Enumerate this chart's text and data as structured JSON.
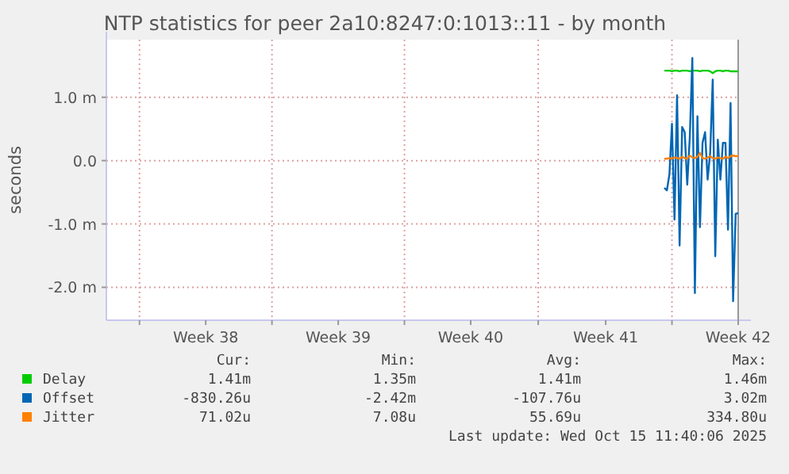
{
  "chart_data": {
    "type": "line",
    "title": "NTP statistics for peer 2a10:8247:0:1013::11 - by month",
    "ylabel": "seconds",
    "categories": [
      null,
      null,
      null,
      null,
      null,
      null,
      null,
      null,
      null,
      null,
      null,
      null,
      null,
      null,
      null,
      null,
      null,
      null,
      null,
      null,
      null,
      null,
      null,
      null,
      null,
      null,
      null,
      null,
      null,
      null,
      null,
      null,
      null,
      null,
      null,
      null,
      null,
      null,
      null,
      "Week 38",
      null,
      null,
      null,
      null,
      null,
      null,
      null,
      null,
      null,
      null,
      null,
      null,
      null,
      null,
      null,
      null,
      null,
      null,
      null,
      null,
      null,
      null,
      null,
      null,
      null,
      null,
      null,
      null,
      null,
      null,
      null,
      null,
      null,
      null,
      null,
      null,
      null,
      null,
      null,
      null,
      null,
      null,
      null,
      null,
      null,
      null,
      null,
      null,
      null,
      null,
      null,
      "Week 39",
      null,
      null,
      null,
      null,
      null,
      null,
      null,
      null,
      null,
      null,
      null,
      null,
      null,
      null,
      null,
      null,
      null,
      null,
      null,
      null,
      null,
      null,
      null,
      null,
      null,
      null,
      null,
      null,
      null,
      null,
      null,
      null,
      null,
      null,
      null,
      null,
      null,
      null,
      null,
      null,
      null,
      null,
      null,
      null,
      null,
      null,
      null,
      null,
      null,
      null,
      null,
      "Week 40",
      null,
      null,
      null,
      null,
      null,
      null,
      null,
      null,
      null,
      null,
      null,
      null,
      null,
      null,
      null,
      null,
      null,
      null,
      null,
      null,
      null,
      null,
      null,
      null,
      null,
      null,
      null,
      null,
      null,
      null,
      null,
      null,
      null,
      null,
      null,
      null,
      null,
      null,
      null,
      null,
      null,
      null,
      null,
      null,
      null,
      null,
      null,
      null,
      null,
      null,
      null,
      null,
      "Week 41",
      null,
      null,
      null,
      null,
      null,
      null,
      null,
      null,
      null,
      null,
      null,
      null,
      null,
      null,
      null,
      null,
      null,
      null,
      null,
      null,
      null,
      null,
      null,
      null,
      null,
      null,
      null,
      null,
      null,
      null,
      null,
      null,
      null,
      null,
      null,
      null,
      null,
      null,
      null,
      null,
      null,
      null,
      null,
      null,
      null,
      null,
      null,
      null,
      null,
      null,
      null,
      "Week 42"
    ],
    "ylim": [
      -2.52,
      1.91
    ],
    "yticks": [
      {
        "value": -2,
        "label": "-2.0 m"
      },
      {
        "value": -1,
        "label": "-1.0 m"
      },
      {
        "value": 0,
        "label": "0.0"
      },
      {
        "value": 1,
        "label": "1.0 m"
      }
    ],
    "grid": true,
    "legend": "bottom left",
    "line_style": "solid",
    "marker": "none",
    "series": [
      {
        "name": "Delay",
        "color": "#00cc00",
        "values": [
          null,
          null,
          null,
          null,
          null,
          null,
          null,
          null,
          null,
          null,
          null,
          null,
          null,
          null,
          null,
          null,
          null,
          null,
          null,
          null,
          null,
          null,
          null,
          null,
          null,
          null,
          null,
          null,
          null,
          null,
          null,
          null,
          null,
          null,
          null,
          null,
          null,
          null,
          null,
          null,
          null,
          null,
          null,
          null,
          null,
          null,
          null,
          null,
          null,
          null,
          null,
          null,
          null,
          null,
          null,
          null,
          null,
          null,
          null,
          null,
          null,
          null,
          null,
          null,
          null,
          null,
          null,
          null,
          null,
          null,
          null,
          null,
          null,
          null,
          null,
          null,
          null,
          null,
          null,
          null,
          null,
          null,
          null,
          null,
          null,
          null,
          null,
          null,
          null,
          null,
          null,
          null,
          null,
          null,
          null,
          null,
          null,
          null,
          null,
          null,
          null,
          null,
          null,
          null,
          null,
          null,
          null,
          null,
          null,
          null,
          null,
          null,
          null,
          null,
          null,
          null,
          null,
          null,
          null,
          null,
          null,
          null,
          null,
          null,
          null,
          null,
          null,
          null,
          null,
          null,
          null,
          null,
          null,
          null,
          null,
          null,
          null,
          null,
          null,
          null,
          null,
          null,
          null,
          null,
          null,
          null,
          null,
          null,
          null,
          null,
          null,
          null,
          null,
          null,
          null,
          null,
          null,
          null,
          null,
          null,
          null,
          null,
          null,
          null,
          null,
          null,
          null,
          null,
          null,
          null,
          null,
          null,
          null,
          null,
          null,
          null,
          null,
          null,
          null,
          null,
          null,
          null,
          null,
          null,
          null,
          null,
          null,
          null,
          null,
          null,
          null,
          null,
          null,
          null,
          null,
          null,
          null,
          null,
          null,
          null,
          null,
          null,
          null,
          null,
          null,
          null,
          null,
          null,
          null,
          null,
          null,
          null,
          null,
          null,
          null,
          null,
          null,
          null,
          null,
          1.42,
          1.42,
          1.42,
          1.41,
          1.42,
          1.42,
          1.41,
          1.42,
          1.42,
          1.42,
          1.41,
          1.42,
          1.42,
          1.42,
          1.41,
          1.42,
          1.42,
          1.42,
          1.41,
          1.38,
          1.41,
          1.42,
          1.42,
          1.41,
          1.42,
          1.42,
          1.41,
          1.41,
          1.41,
          1.41
        ]
      },
      {
        "name": "Offset",
        "color": "#0066b3",
        "values": [
          null,
          null,
          null,
          null,
          null,
          null,
          null,
          null,
          null,
          null,
          null,
          null,
          null,
          null,
          null,
          null,
          null,
          null,
          null,
          null,
          null,
          null,
          null,
          null,
          null,
          null,
          null,
          null,
          null,
          null,
          null,
          null,
          null,
          null,
          null,
          null,
          null,
          null,
          null,
          null,
          null,
          null,
          null,
          null,
          null,
          null,
          null,
          null,
          null,
          null,
          null,
          null,
          null,
          null,
          null,
          null,
          null,
          null,
          null,
          null,
          null,
          null,
          null,
          null,
          null,
          null,
          null,
          null,
          null,
          null,
          null,
          null,
          null,
          null,
          null,
          null,
          null,
          null,
          null,
          null,
          null,
          null,
          null,
          null,
          null,
          null,
          null,
          null,
          null,
          null,
          null,
          null,
          null,
          null,
          null,
          null,
          null,
          null,
          null,
          null,
          null,
          null,
          null,
          null,
          null,
          null,
          null,
          null,
          null,
          null,
          null,
          null,
          null,
          null,
          null,
          null,
          null,
          null,
          null,
          null,
          null,
          null,
          null,
          null,
          null,
          null,
          null,
          null,
          null,
          null,
          null,
          null,
          null,
          null,
          null,
          null,
          null,
          null,
          null,
          null,
          null,
          null,
          null,
          null,
          null,
          null,
          null,
          null,
          null,
          null,
          null,
          null,
          null,
          null,
          null,
          null,
          null,
          null,
          null,
          null,
          null,
          null,
          null,
          null,
          null,
          null,
          null,
          null,
          null,
          null,
          null,
          null,
          null,
          null,
          null,
          null,
          null,
          null,
          null,
          null,
          null,
          null,
          null,
          null,
          null,
          null,
          null,
          null,
          null,
          null,
          null,
          null,
          null,
          null,
          null,
          null,
          null,
          null,
          null,
          null,
          null,
          null,
          null,
          null,
          null,
          null,
          null,
          null,
          null,
          null,
          null,
          null,
          null,
          null,
          null,
          null,
          null,
          null,
          null,
          -0.43,
          -0.47,
          -0.22,
          0.58,
          -0.93,
          1.03,
          -1.34,
          0.53,
          0.45,
          -0.38,
          0.37,
          1.62,
          -2.09,
          0.7,
          -1.05,
          0.28,
          0.45,
          -0.3,
          0.12,
          1.28,
          -1.51,
          0.33,
          -0.3,
          0.28,
          0.28,
          -1.09,
          0.91,
          -2.22,
          -0.84,
          -0.83
        ]
      },
      {
        "name": "Jitter",
        "color": "#ff8000",
        "values": [
          null,
          null,
          null,
          null,
          null,
          null,
          null,
          null,
          null,
          null,
          null,
          null,
          null,
          null,
          null,
          null,
          null,
          null,
          null,
          null,
          null,
          null,
          null,
          null,
          null,
          null,
          null,
          null,
          null,
          null,
          null,
          null,
          null,
          null,
          null,
          null,
          null,
          null,
          null,
          null,
          null,
          null,
          null,
          null,
          null,
          null,
          null,
          null,
          null,
          null,
          null,
          null,
          null,
          null,
          null,
          null,
          null,
          null,
          null,
          null,
          null,
          null,
          null,
          null,
          null,
          null,
          null,
          null,
          null,
          null,
          null,
          null,
          null,
          null,
          null,
          null,
          null,
          null,
          null,
          null,
          null,
          null,
          null,
          null,
          null,
          null,
          null,
          null,
          null,
          null,
          null,
          null,
          null,
          null,
          null,
          null,
          null,
          null,
          null,
          null,
          null,
          null,
          null,
          null,
          null,
          null,
          null,
          null,
          null,
          null,
          null,
          null,
          null,
          null,
          null,
          null,
          null,
          null,
          null,
          null,
          null,
          null,
          null,
          null,
          null,
          null,
          null,
          null,
          null,
          null,
          null,
          null,
          null,
          null,
          null,
          null,
          null,
          null,
          null,
          null,
          null,
          null,
          null,
          null,
          null,
          null,
          null,
          null,
          null,
          null,
          null,
          null,
          null,
          null,
          null,
          null,
          null,
          null,
          null,
          null,
          null,
          null,
          null,
          null,
          null,
          null,
          null,
          null,
          null,
          null,
          null,
          null,
          null,
          null,
          null,
          null,
          null,
          null,
          null,
          null,
          null,
          null,
          null,
          null,
          null,
          null,
          null,
          null,
          null,
          null,
          null,
          null,
          null,
          null,
          null,
          null,
          null,
          null,
          null,
          null,
          null,
          null,
          null,
          null,
          null,
          null,
          null,
          null,
          null,
          null,
          null,
          null,
          null,
          null,
          null,
          null,
          null,
          null,
          null,
          0.03,
          0.03,
          0.04,
          0.03,
          0.05,
          0.04,
          0.03,
          0.06,
          0.04,
          0.03,
          0.08,
          0.05,
          0.04,
          0.06,
          0.12,
          0.04,
          0.03,
          0.05,
          0.07,
          0.04,
          0.03,
          0.05,
          0.04,
          0.03,
          0.06,
          0.04,
          0.07,
          0.08,
          0.07,
          0.07
        ]
      }
    ],
    "annotations": [
      "Cur:",
      "Min:",
      "Avg:",
      "Max:",
      "1.41m",
      "1.35m",
      "1.41m",
      "1.46m",
      "-830.26u",
      "-2.42m",
      "-107.76u",
      "3.02m",
      "71.02u",
      "7.08u",
      "55.69u",
      "334.80u",
      "Last update: Wed Oct 15 11:40:06 2025"
    ]
  }
}
